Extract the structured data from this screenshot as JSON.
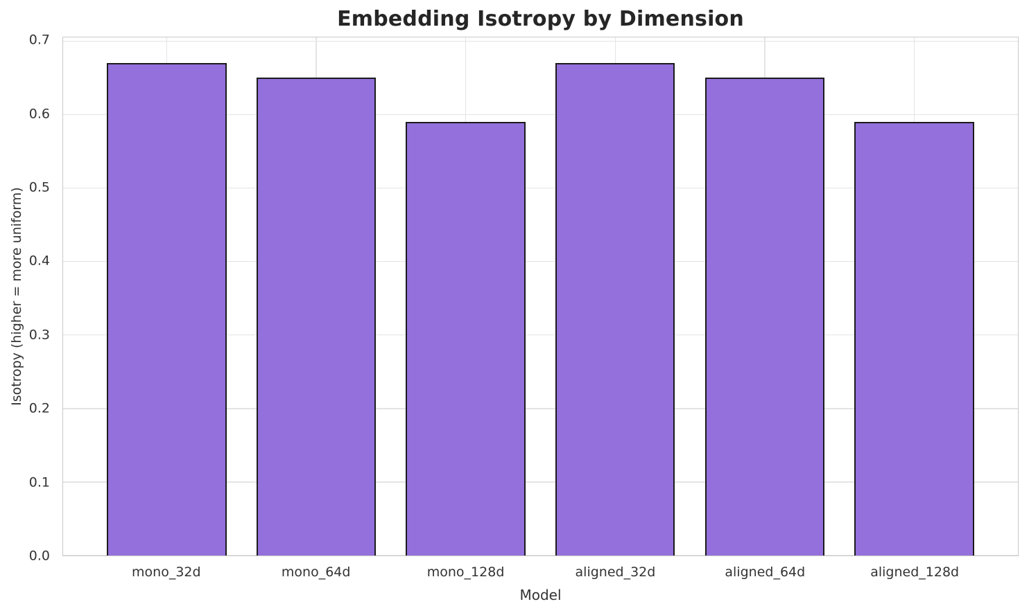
{
  "figure": {
    "background": "#ffffff"
  },
  "chart_data": {
    "type": "bar",
    "title": "Embedding Isotropy by Dimension",
    "xlabel": "Model",
    "ylabel": "Isotropy (higher = more uniform)",
    "categories": [
      "mono_32d",
      "mono_64d",
      "mono_128d",
      "aligned_32d",
      "aligned_64d",
      "aligned_128d"
    ],
    "values": [
      0.67,
      0.65,
      0.59,
      0.67,
      0.65,
      0.59
    ],
    "ylim": [
      0,
      0.705
    ],
    "ytick_values": [
      0.0,
      0.1,
      0.2,
      0.3,
      0.4,
      0.5,
      0.6,
      0.7
    ],
    "ytick_labels": [
      "0.0",
      "0.1",
      "0.2",
      "0.3",
      "0.4",
      "0.5",
      "0.6",
      "0.7"
    ],
    "xlim": [
      -0.694,
      5.694
    ],
    "bar_width_units": 0.8,
    "grid": "both",
    "legend_position": "none",
    "colors": {
      "bar_fill": "#9370DB",
      "bar_edge": "#1a1a1a",
      "grid": "#e4e4e4",
      "spine": "#c8c8c8",
      "tick_text": "#333333",
      "title_text": "#262626",
      "background": "#ffffff"
    }
  }
}
